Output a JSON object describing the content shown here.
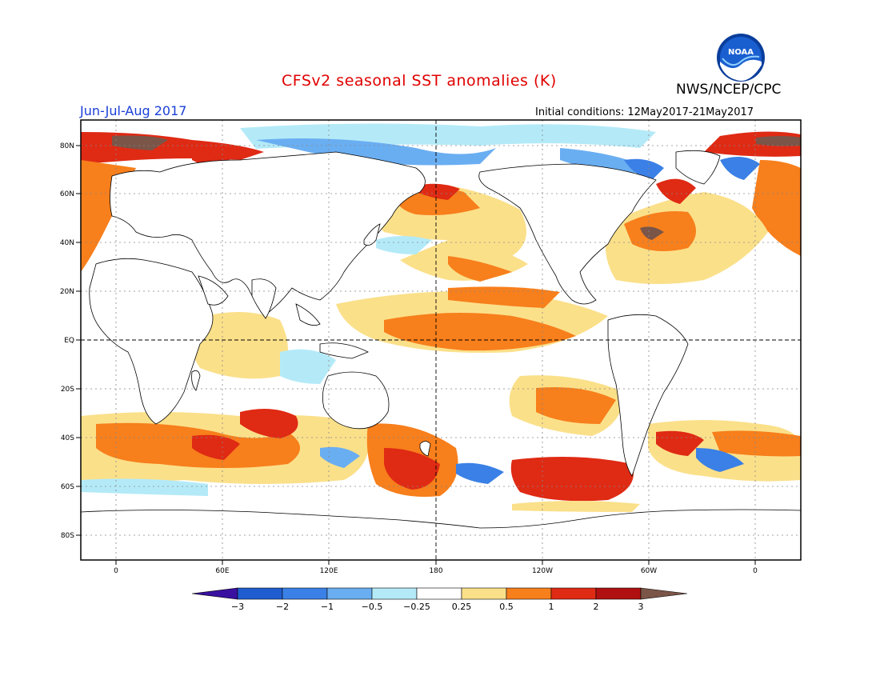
{
  "title": "CFSv2 seasonal SST anomalies (K)",
  "agency": "NWS/NCEP/CPC",
  "season": "Jun-Jul-Aug 2017",
  "initial_conditions": {
    "label": "Initial conditions:",
    "value": "12May2017-21May2017"
  },
  "logo_text": "NOAA",
  "lat_labels": [
    "80N",
    "60N",
    "40N",
    "20N",
    "EQ",
    "20S",
    "40S",
    "60S",
    "80S"
  ],
  "lon_labels": [
    "0",
    "60E",
    "120E",
    "180",
    "120W",
    "60W",
    "0"
  ],
  "colorbar": {
    "labels": [
      "-3",
      "-2",
      "-1",
      "-0.5",
      "-0.25",
      "0.25",
      "0.5",
      "1",
      "2",
      "3"
    ],
    "colors": [
      "#3a10a0",
      "#1f5cd0",
      "#3a80e6",
      "#6aaef2",
      "#b4eaf8",
      "#ffffff",
      "#fbe08a",
      "#f77f1c",
      "#df2a14",
      "#b01010",
      "#7a5548"
    ]
  },
  "colors": {
    "title": "#e00000",
    "season": "#1a3fd8",
    "land": "#ffffff",
    "coast": "#000000"
  }
}
